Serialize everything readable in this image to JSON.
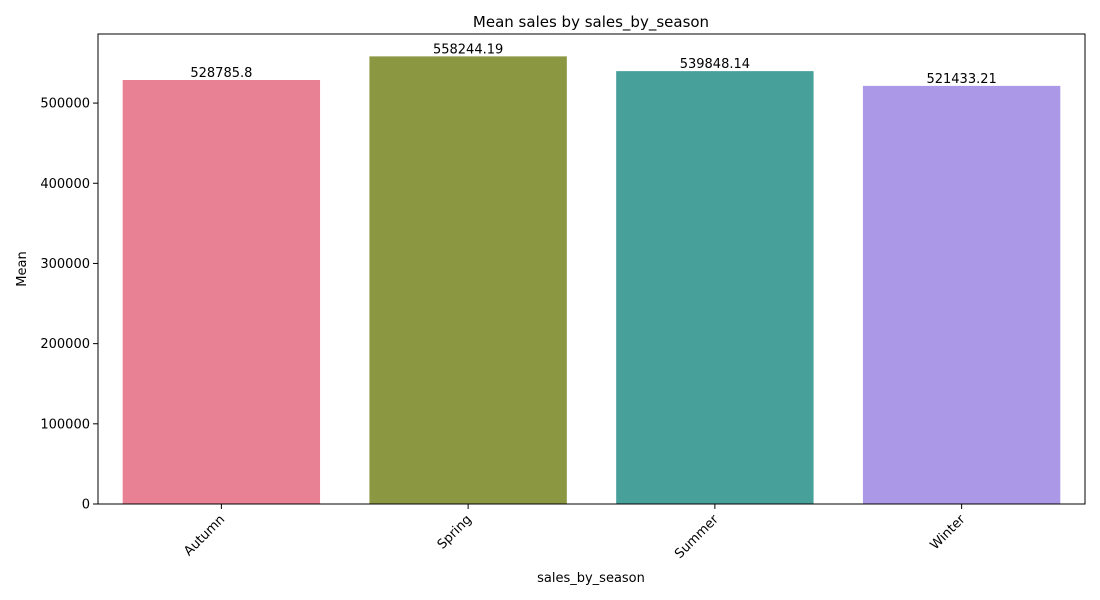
{
  "chart_data": {
    "type": "bar",
    "title": "Mean sales by sales_by_season",
    "xlabel": "sales_by_season",
    "ylabel": "Mean",
    "categories": [
      "Autumn",
      "Spring",
      "Summer",
      "Winter"
    ],
    "values": [
      528785.8,
      558244.19,
      539848.14,
      521433.21
    ],
    "value_labels": [
      "528785.8",
      "558244.19",
      "539848.14",
      "521433.21"
    ],
    "colors": [
      "#e88193",
      "#8c9742",
      "#47a09a",
      "#ab99e7"
    ],
    "yticks": [
      0,
      100000,
      200000,
      300000,
      400000,
      500000
    ],
    "ylim": [
      0,
      586156.4
    ],
    "grid": false,
    "legend": "none"
  }
}
